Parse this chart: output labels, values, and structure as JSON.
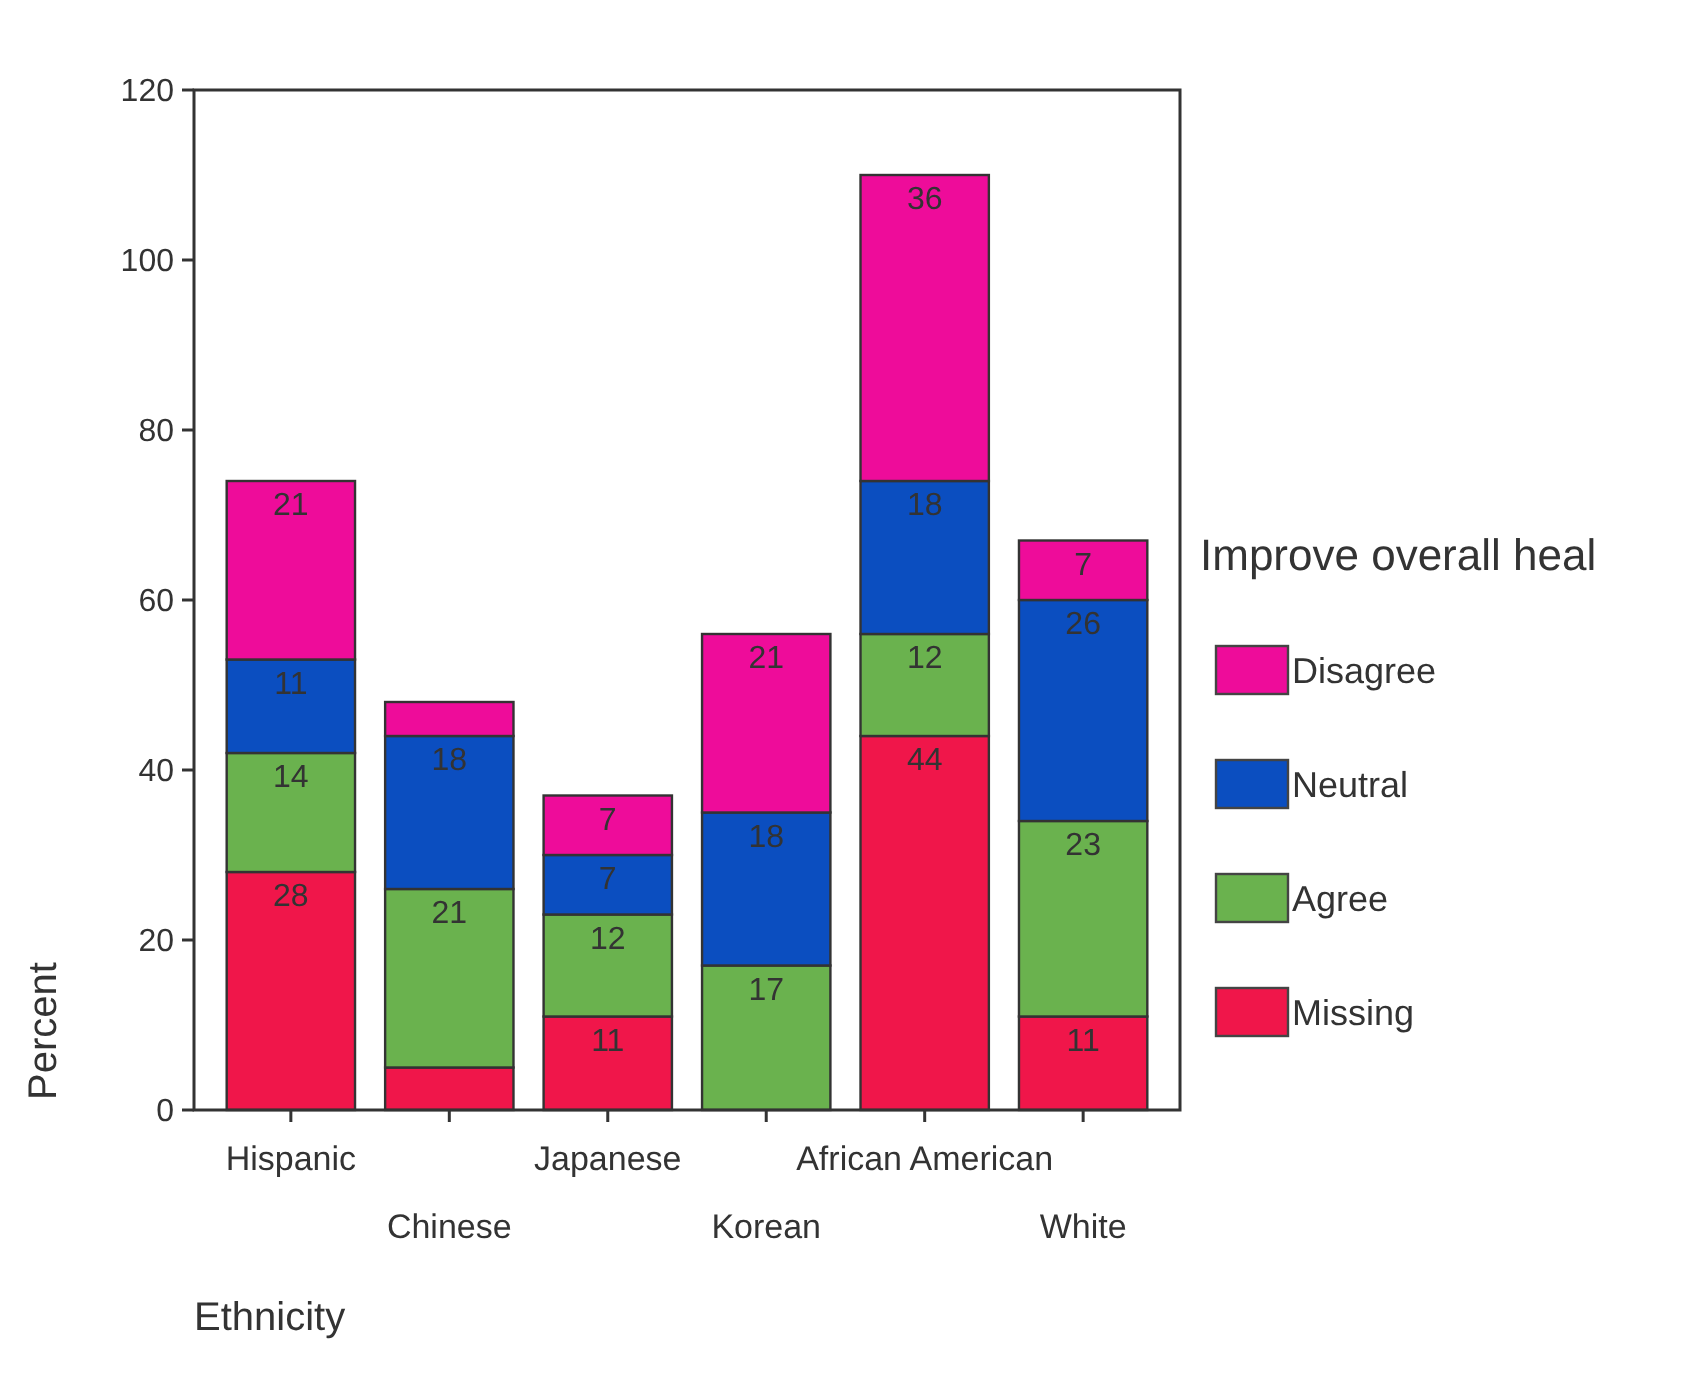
{
  "chart_data": {
    "type": "bar",
    "stacked": true,
    "xlabel": "Ethnicity",
    "ylabel": "Percent",
    "legend_title": "Improve overall heal",
    "legend": "right",
    "categories": [
      "Hispanic",
      "Chinese",
      "Japanese",
      "Korean",
      "African American",
      "White"
    ],
    "ylim": [
      0,
      120
    ],
    "yticks": [
      0,
      20,
      40,
      60,
      80,
      100,
      120
    ],
    "grid": false,
    "series": [
      {
        "name": "Missing",
        "color": "#f0164a",
        "values": [
          28,
          5,
          11,
          null,
          44,
          11
        ],
        "value_labels": [
          "28",
          null,
          "11",
          null,
          "44",
          "11"
        ]
      },
      {
        "name": "Agree",
        "color": "#6ab24e",
        "values": [
          14,
          21,
          12,
          17,
          12,
          23
        ],
        "value_labels": [
          "14",
          "21",
          "12",
          "17",
          "12",
          "23"
        ]
      },
      {
        "name": "Neutral",
        "color": "#0b4ec0",
        "values": [
          11,
          18,
          7,
          18,
          18,
          26
        ],
        "value_labels": [
          "11",
          "18",
          "7",
          "18",
          "18",
          "26"
        ]
      },
      {
        "name": "Disagree",
        "color": "#ee0c9a",
        "values": [
          21,
          4,
          7,
          21,
          36,
          7
        ],
        "value_labels": [
          "21",
          null,
          "7",
          "21",
          "36",
          "7"
        ]
      }
    ]
  }
}
